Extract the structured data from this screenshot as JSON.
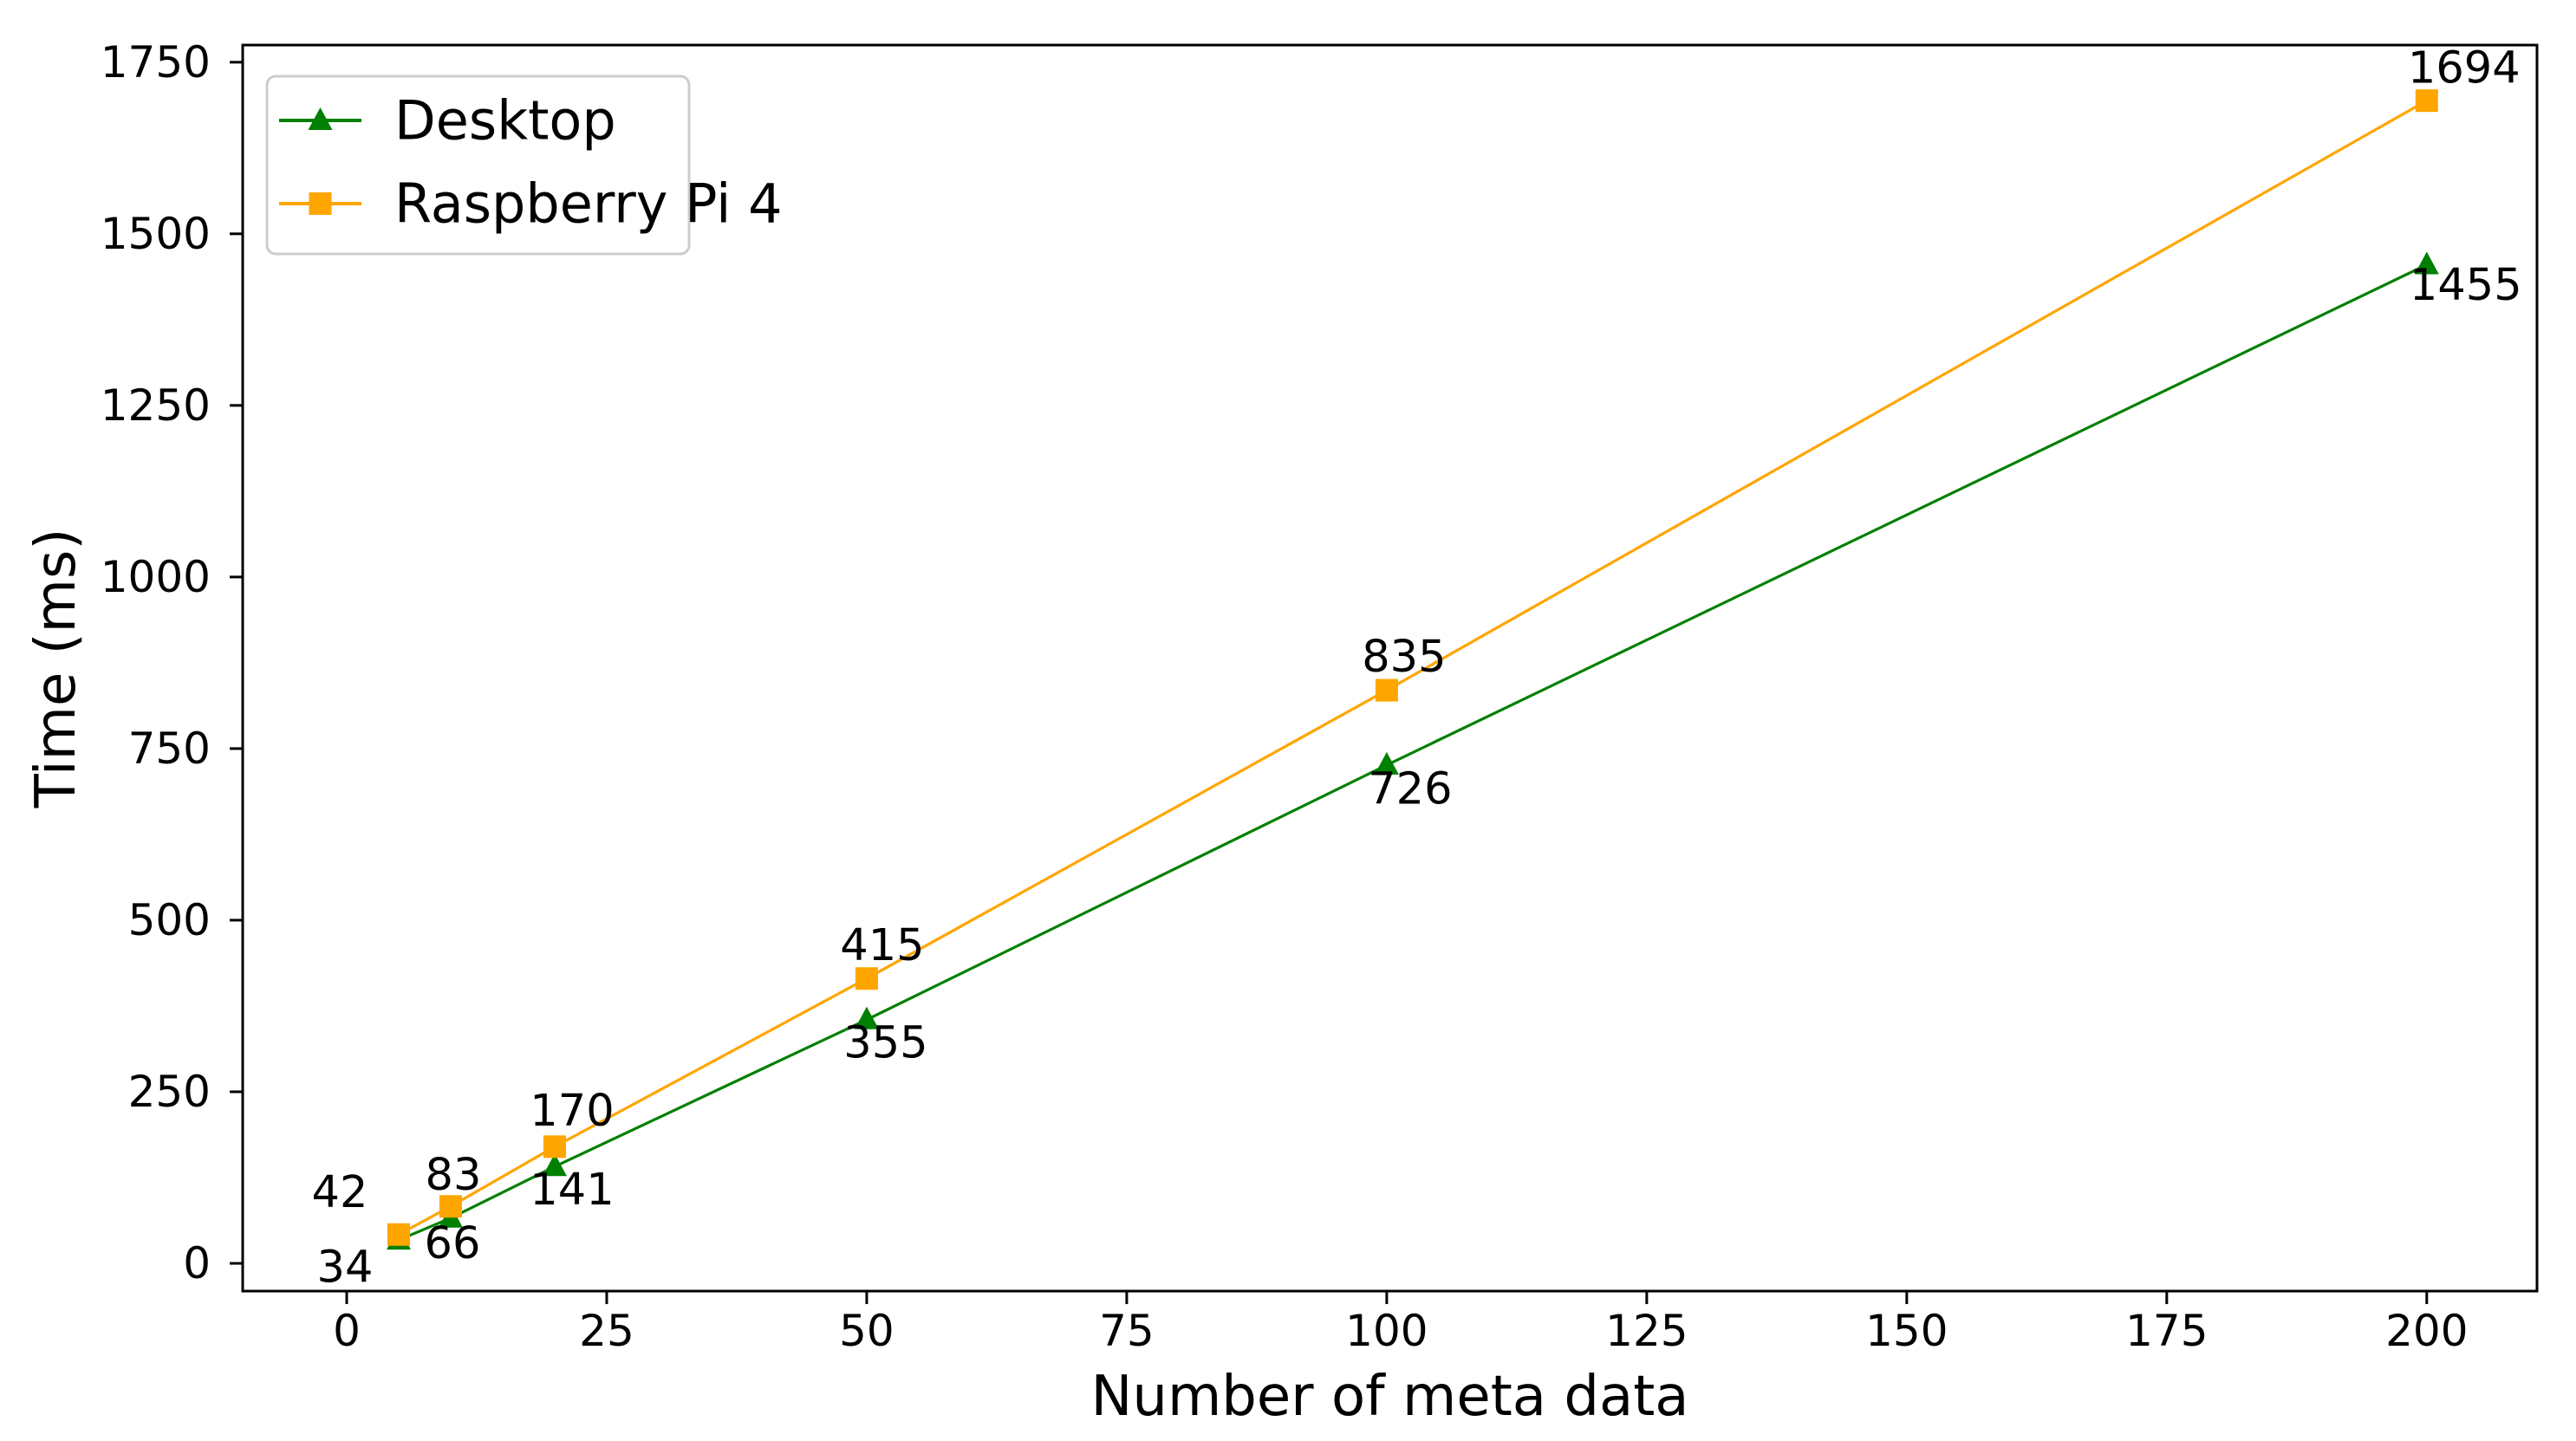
{
  "chart_data": {
    "type": "line",
    "title": "",
    "xlabel": "Number of meta data",
    "ylabel": "Time (ms)",
    "x": [
      5,
      10,
      20,
      50,
      100,
      200
    ],
    "series": [
      {
        "name": "Desktop",
        "color": "#008000",
        "marker": "triangle",
        "values": [
          34,
          66,
          141,
          355,
          726,
          1455
        ],
        "label_offsets": [
          [
            -62,
            32
          ],
          [
            2,
            30
          ],
          [
            20,
            27
          ],
          [
            22,
            27
          ],
          [
            27,
            28
          ],
          [
            45,
            24
          ]
        ]
      },
      {
        "name": "Raspberry Pi 4",
        "color": "#FFA500",
        "marker": "square",
        "values": [
          42,
          83,
          170,
          415,
          835,
          1694
        ],
        "label_offsets": [
          [
            -68,
            -48
          ],
          [
            3,
            -36
          ],
          [
            20,
            -41
          ],
          [
            18,
            -38
          ],
          [
            20,
            -38
          ],
          [
            43,
            -37
          ]
        ]
      }
    ],
    "xlim": [
      -10,
      210.6
    ],
    "ylim": [
      -40.4,
      1775
    ],
    "xticks": [
      0,
      25,
      50,
      75,
      100,
      125,
      150,
      175,
      200
    ],
    "yticks": [
      0,
      250,
      500,
      750,
      1000,
      1250,
      1500,
      1750
    ],
    "grid": false,
    "legend_position": "upper-left",
    "frame_color": "#000000",
    "legend_border_color": "#cccccc",
    "label_color": "#000000"
  }
}
